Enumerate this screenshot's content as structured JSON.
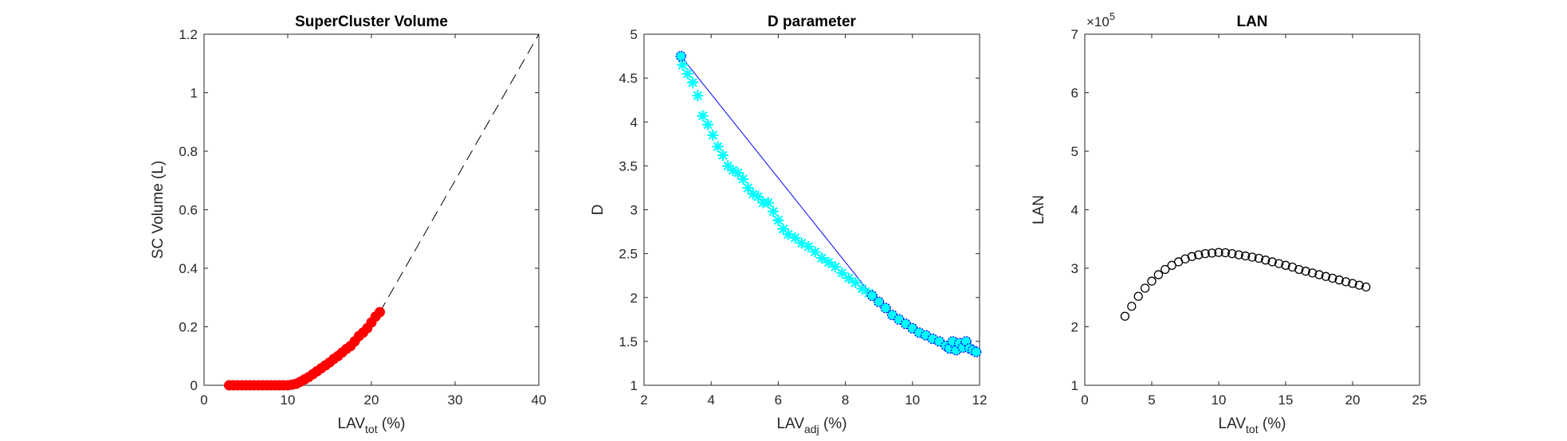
{
  "chart_data": [
    {
      "type": "scatter",
      "title": "SuperCluster Volume",
      "xlabel": "LAV",
      "xlabel_sub": "tot",
      "xlabel_unit": " (%)",
      "ylabel": "SC Volume (L)",
      "xlim": [
        0,
        40
      ],
      "ylim": [
        0,
        1.2
      ],
      "xticks": [
        0,
        10,
        20,
        30,
        40
      ],
      "yticks": [
        0,
        0.2,
        0.4,
        0.6,
        0.8,
        1,
        1.2
      ],
      "xtick_labels": [
        "0",
        "10",
        "20",
        "30",
        "40"
      ],
      "ytick_labels": [
        "0",
        "0.2",
        "0.4",
        "0.6",
        "0.8",
        "1",
        "1.2"
      ],
      "grid": false,
      "colors": {
        "markers": "#ff0000",
        "reference_line": "#000000"
      },
      "series": [
        {
          "marker": "circle",
          "x": [
            3,
            3.5,
            4,
            4.5,
            5,
            5.5,
            6,
            6.5,
            7,
            7.5,
            8,
            8.5,
            9,
            9.5,
            10,
            10.5,
            11,
            11.5,
            12,
            12.5,
            13,
            13.5,
            14,
            14.5,
            15,
            15.5,
            16,
            16.5,
            17,
            17.5,
            18,
            18.5,
            19,
            19.5,
            20,
            20.5,
            21
          ],
          "y": [
            0,
            0,
            0,
            0,
            0,
            0,
            0,
            0,
            0,
            0,
            0,
            0,
            0,
            0,
            0,
            0.002,
            0.005,
            0.012,
            0.02,
            0.028,
            0.038,
            0.048,
            0.058,
            0.068,
            0.078,
            0.09,
            0.1,
            0.112,
            0.124,
            0.134,
            0.15,
            0.168,
            0.18,
            0.195,
            0.215,
            0.235,
            0.25
          ]
        }
      ],
      "reference_line": {
        "style": "dashed",
        "x": [
          21,
          40
        ],
        "y": [
          0.25,
          1.2
        ]
      }
    },
    {
      "type": "scatter",
      "title": "D parameter",
      "xlabel": "LAV",
      "xlabel_sub": "adj",
      "xlabel_unit": " (%)",
      "ylabel": "D",
      "xlim": [
        2,
        12
      ],
      "ylim": [
        1,
        5
      ],
      "xticks": [
        2,
        4,
        6,
        8,
        10,
        12
      ],
      "yticks": [
        1,
        1.5,
        2,
        2.5,
        3,
        3.5,
        4,
        4.5,
        5
      ],
      "xtick_labels": [
        "2",
        "4",
        "6",
        "8",
        "10",
        "12"
      ],
      "ytick_labels": [
        "1",
        "1.5",
        "2",
        "2.5",
        "3",
        "3.5",
        "4",
        "4.5",
        "5"
      ],
      "grid": false,
      "colors": {
        "stars": "#00ffff",
        "circles_edge": "#0000ff",
        "circles_fill": "#00ffff",
        "line": "#0000ff"
      },
      "series": [
        {
          "marker": "star",
          "x": [
            3.15,
            3.3,
            3.45,
            3.6,
            3.75,
            3.9,
            4.05,
            4.2,
            4.35,
            4.5,
            4.65,
            4.8,
            4.95,
            5.1,
            5.25,
            5.4,
            5.55,
            5.7,
            5.85,
            6.0,
            6.15,
            6.3,
            6.5,
            6.7,
            6.9,
            7.1,
            7.3,
            7.5,
            7.7,
            7.9,
            8.1,
            8.3,
            8.5,
            8.7
          ],
          "y": [
            4.65,
            4.55,
            4.45,
            4.3,
            4.07,
            3.97,
            3.85,
            3.72,
            3.62,
            3.5,
            3.45,
            3.42,
            3.35,
            3.25,
            3.18,
            3.15,
            3.08,
            3.08,
            2.98,
            2.88,
            2.78,
            2.72,
            2.68,
            2.62,
            2.58,
            2.52,
            2.45,
            2.4,
            2.35,
            2.28,
            2.22,
            2.17,
            2.1,
            2.05
          ]
        },
        {
          "marker": "circle",
          "x": [
            3.1,
            8.8,
            9.0,
            9.2,
            9.4,
            9.6,
            9.8,
            10.0,
            10.2,
            10.4,
            10.6,
            10.8,
            11.0,
            11.1,
            11.2,
            11.3,
            11.4,
            11.5,
            11.6,
            11.7,
            11.8,
            11.9
          ],
          "y": [
            4.75,
            2.02,
            1.95,
            1.88,
            1.8,
            1.75,
            1.7,
            1.65,
            1.6,
            1.57,
            1.53,
            1.5,
            1.45,
            1.42,
            1.5,
            1.4,
            1.48,
            1.43,
            1.5,
            1.42,
            1.4,
            1.38
          ]
        }
      ],
      "fit_line": {
        "x": [
          3.1,
          8.8
        ],
        "y": [
          4.75,
          2.02
        ]
      }
    },
    {
      "type": "scatter",
      "title": "LAN",
      "xlabel": "LAV",
      "xlabel_sub": "tot",
      "xlabel_unit": " (%)",
      "ylabel": "LAN",
      "y_exponent_base": "×10",
      "y_exponent_power": "5",
      "xlim": [
        0,
        25
      ],
      "ylim": [
        1,
        7
      ],
      "xticks": [
        0,
        5,
        10,
        15,
        20,
        25
      ],
      "yticks": [
        1,
        2,
        3,
        4,
        5,
        6,
        7
      ],
      "xtick_labels": [
        "0",
        "5",
        "10",
        "15",
        "20",
        "25"
      ],
      "ytick_labels": [
        "1",
        "2",
        "3",
        "4",
        "5",
        "6",
        "7"
      ],
      "grid": false,
      "colors": {
        "markers": "#000000"
      },
      "series": [
        {
          "marker": "open-circle",
          "x": [
            3,
            3.5,
            4,
            4.5,
            5,
            5.5,
            6,
            6.5,
            7,
            7.5,
            8,
            8.5,
            9,
            9.5,
            10,
            10.5,
            11,
            11.5,
            12,
            12.5,
            13,
            13.5,
            14,
            14.5,
            15,
            15.5,
            16,
            16.5,
            17,
            17.5,
            18,
            18.5,
            19,
            19.5,
            20,
            20.5,
            21
          ],
          "y": [
            2.18,
            2.35,
            2.52,
            2.66,
            2.78,
            2.89,
            2.98,
            3.05,
            3.11,
            3.16,
            3.2,
            3.23,
            3.25,
            3.26,
            3.27,
            3.265,
            3.25,
            3.23,
            3.21,
            3.19,
            3.17,
            3.14,
            3.11,
            3.08,
            3.05,
            3.02,
            2.98,
            2.95,
            2.92,
            2.89,
            2.86,
            2.83,
            2.8,
            2.77,
            2.74,
            2.71,
            2.68
          ]
        }
      ]
    }
  ]
}
